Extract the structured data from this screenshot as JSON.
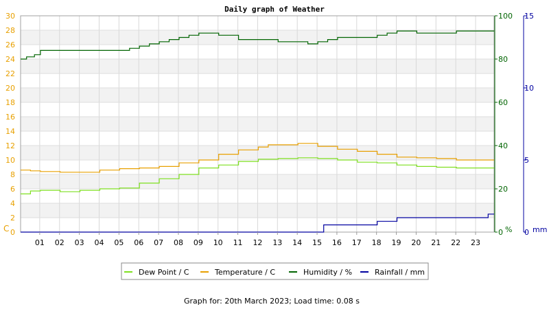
{
  "chart_data": {
    "type": "line",
    "title": "Daily graph of Weather",
    "footer": "Graph for: 20th March 2023; Load time: 0.08 s",
    "x_ticks": [
      "01",
      "02",
      "03",
      "04",
      "05",
      "06",
      "07",
      "08",
      "09",
      "10",
      "11",
      "12",
      "13",
      "14",
      "15",
      "16",
      "17",
      "18",
      "19",
      "20",
      "21",
      "22",
      "23"
    ],
    "xlim": [
      0,
      23.9
    ],
    "axes": {
      "left": {
        "unit_label": "C",
        "color": "#e8a000",
        "ylim": [
          0,
          30
        ],
        "ticks": [
          "0",
          "2",
          "4",
          "6",
          "8",
          "10",
          "12",
          "14",
          "16",
          "18",
          "20",
          "22",
          "24",
          "26",
          "28",
          "30"
        ]
      },
      "humidity": {
        "unit_label": "%",
        "color": "#006400",
        "ylim": [
          0,
          100
        ],
        "ticks": [
          "0",
          "20",
          "40",
          "60",
          "80",
          "100"
        ]
      },
      "rain": {
        "unit_label": "mm",
        "color": "#0000a0",
        "ylim": [
          0,
          15
        ],
        "ticks": [
          "0",
          "5",
          "10",
          "15"
        ]
      }
    },
    "grid": true,
    "legend": [
      {
        "name": "Dew Point / C",
        "color": "#7fe020"
      },
      {
        "name": "Temperature / C",
        "color": "#e8a000"
      },
      {
        "name": "Humidity / %",
        "color": "#006400"
      },
      {
        "name": "Rainfall / mm",
        "color": "#0000a0"
      }
    ],
    "series": [
      {
        "name": "Dew Point / C",
        "axis": "left",
        "color": "#7fe020",
        "x": [
          0,
          0.5,
          1,
          2,
          3,
          4,
          5,
          6,
          7,
          8,
          9,
          10,
          11,
          12,
          13,
          14,
          15,
          16,
          17,
          18,
          19,
          20,
          21,
          22,
          23,
          23.9
        ],
        "y": [
          5.3,
          5.7,
          5.8,
          5.6,
          5.8,
          6.0,
          6.1,
          6.8,
          7.4,
          8.0,
          8.9,
          9.3,
          9.8,
          10.1,
          10.2,
          10.3,
          10.2,
          10.0,
          9.7,
          9.6,
          9.3,
          9.1,
          9.0,
          8.9,
          8.9,
          8.9
        ]
      },
      {
        "name": "Temperature / C",
        "axis": "left",
        "color": "#e8a000",
        "x": [
          0,
          0.5,
          1,
          2,
          3,
          4,
          5,
          6,
          7,
          8,
          9,
          10,
          11,
          12,
          12.5,
          13,
          14,
          15,
          16,
          17,
          18,
          19,
          20,
          21,
          22,
          23,
          23.9
        ],
        "y": [
          8.6,
          8.5,
          8.4,
          8.3,
          8.3,
          8.6,
          8.8,
          8.9,
          9.1,
          9.6,
          10.0,
          10.8,
          11.4,
          11.8,
          12.1,
          12.1,
          12.3,
          11.9,
          11.5,
          11.2,
          10.8,
          10.4,
          10.3,
          10.2,
          10.0,
          10.0,
          10.0
        ]
      },
      {
        "name": "Humidity / %",
        "axis": "humidity",
        "color": "#006400",
        "x": [
          0,
          0.3,
          0.7,
          1,
          2,
          3,
          4,
          5,
          5.5,
          6,
          6.5,
          7,
          7.5,
          8,
          8.5,
          9,
          9.5,
          10,
          11,
          12,
          13,
          14,
          14.5,
          15,
          15.5,
          16,
          16.5,
          17,
          17.5,
          18,
          18.5,
          19,
          20,
          20.5,
          21,
          21.5,
          22,
          23,
          23.9
        ],
        "y": [
          80,
          81,
          82,
          84,
          84,
          84,
          84,
          84,
          85,
          86,
          87,
          88,
          89,
          90,
          91,
          92,
          92,
          91,
          89,
          89,
          88,
          88,
          87,
          88,
          89,
          90,
          90,
          90,
          90,
          91,
          92,
          93,
          92,
          92,
          92,
          92,
          93,
          93,
          93
        ]
      },
      {
        "name": "Rainfall / mm",
        "axis": "rain",
        "color": "#0000a0",
        "x": [
          0,
          15.0,
          15.3,
          16.8,
          17,
          18,
          18.8,
          19,
          23.5,
          23.6,
          23.9
        ],
        "y": [
          0,
          0,
          0.5,
          0.5,
          0.5,
          0.75,
          0.75,
          1.0,
          1.0,
          1.25,
          1.25
        ]
      }
    ]
  }
}
